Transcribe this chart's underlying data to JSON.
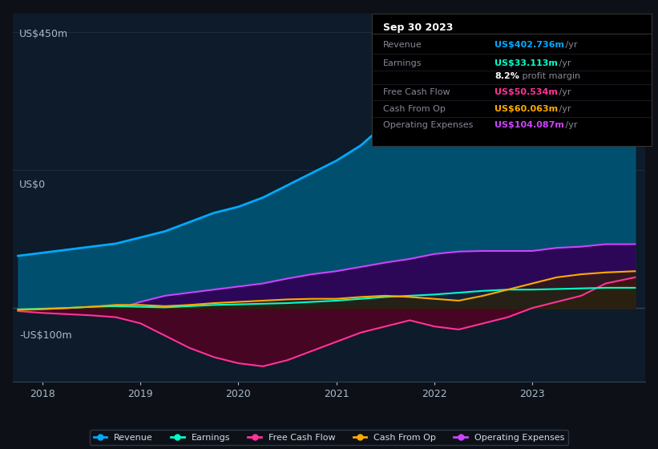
{
  "bg_color": "#0d1117",
  "plot_bg": "#0d1b2a",
  "grid_color": "#1e2d3d",
  "ylabel_450": "US$450m",
  "ylabel_0": "US$0",
  "ylabel_neg100": "-US$100m",
  "ylim": [
    -120,
    480
  ],
  "xlim": [
    2017.7,
    2024.15
  ],
  "xticks": [
    2018,
    2019,
    2020,
    2021,
    2022,
    2023
  ],
  "revenue": {
    "x": [
      2017.75,
      2018.0,
      2018.25,
      2018.5,
      2018.75,
      2019.0,
      2019.25,
      2019.5,
      2019.75,
      2020.0,
      2020.25,
      2020.5,
      2020.75,
      2021.0,
      2021.25,
      2021.5,
      2021.75,
      2022.0,
      2022.25,
      2022.5,
      2022.75,
      2023.0,
      2023.25,
      2023.5,
      2023.75,
      2024.05
    ],
    "y": [
      85,
      90,
      95,
      100,
      105,
      115,
      125,
      140,
      155,
      165,
      180,
      200,
      220,
      240,
      265,
      300,
      330,
      360,
      390,
      415,
      435,
      440,
      438,
      428,
      418,
      403
    ],
    "color": "#00aaff",
    "fill_color": "#005577",
    "label": "Revenue"
  },
  "operating_expenses": {
    "x": [
      2018.9,
      2019.0,
      2019.25,
      2019.5,
      2019.75,
      2020.0,
      2020.25,
      2020.5,
      2020.75,
      2021.0,
      2021.25,
      2021.5,
      2021.75,
      2022.0,
      2022.25,
      2022.5,
      2022.75,
      2023.0,
      2023.25,
      2023.5,
      2023.75,
      2024.05
    ],
    "y": [
      5,
      10,
      20,
      25,
      30,
      35,
      40,
      48,
      55,
      60,
      67,
      74,
      80,
      88,
      92,
      93,
      93,
      93,
      98,
      100,
      104,
      104
    ],
    "color": "#cc44ff",
    "fill_color": "#330055",
    "label": "Operating Expenses"
  },
  "earnings": {
    "x": [
      2017.75,
      2018.0,
      2018.25,
      2018.5,
      2018.75,
      2019.0,
      2019.25,
      2019.5,
      2019.75,
      2020.0,
      2020.25,
      2020.5,
      2020.75,
      2021.0,
      2021.25,
      2021.5,
      2021.75,
      2022.0,
      2022.25,
      2022.5,
      2022.75,
      2023.0,
      2023.25,
      2023.5,
      2023.75,
      2024.05
    ],
    "y": [
      -2,
      -1,
      0,
      2,
      3,
      2,
      1,
      3,
      5,
      6,
      7,
      8,
      10,
      12,
      15,
      18,
      20,
      22,
      25,
      28,
      30,
      30,
      31,
      32,
      33,
      33
    ],
    "color": "#00ffcc",
    "fill_color": "#003322",
    "label": "Earnings"
  },
  "free_cash_flow": {
    "x": [
      2017.75,
      2018.0,
      2018.25,
      2018.5,
      2018.75,
      2019.0,
      2019.25,
      2019.5,
      2019.75,
      2020.0,
      2020.25,
      2020.5,
      2020.75,
      2021.0,
      2021.25,
      2021.5,
      2021.75,
      2022.0,
      2022.25,
      2022.5,
      2022.75,
      2023.0,
      2023.25,
      2023.5,
      2023.75,
      2024.05
    ],
    "y": [
      -5,
      -8,
      -10,
      -12,
      -15,
      -25,
      -45,
      -65,
      -80,
      -90,
      -95,
      -85,
      -70,
      -55,
      -40,
      -30,
      -20,
      -30,
      -35,
      -25,
      -15,
      0,
      10,
      20,
      40,
      50
    ],
    "color": "#ff3399",
    "fill_color": "#550022",
    "label": "Free Cash Flow"
  },
  "cash_from_op": {
    "x": [
      2017.75,
      2018.0,
      2018.25,
      2018.5,
      2018.75,
      2019.0,
      2019.25,
      2019.5,
      2019.75,
      2020.0,
      2020.25,
      2020.5,
      2020.75,
      2021.0,
      2021.25,
      2021.5,
      2021.75,
      2022.0,
      2022.25,
      2022.5,
      2022.75,
      2023.0,
      2023.25,
      2023.5,
      2023.75,
      2024.05
    ],
    "y": [
      -3,
      -2,
      0,
      2,
      5,
      5,
      3,
      5,
      8,
      10,
      12,
      14,
      15,
      15,
      18,
      20,
      18,
      15,
      12,
      20,
      30,
      40,
      50,
      55,
      58,
      60
    ],
    "color": "#ffaa00",
    "fill_color": "#332200",
    "label": "Cash From Op"
  },
  "info_box": {
    "date": "Sep 30 2023",
    "items": [
      {
        "label": "Revenue",
        "value": "US$402.736m",
        "value_color": "#00aaff",
        "suffix": " /yr"
      },
      {
        "label": "Earnings",
        "value": "US$33.113m",
        "value_color": "#00ffcc",
        "suffix": " /yr"
      },
      {
        "label": "",
        "value": "8.2%",
        "value_color": "#ffffff",
        "suffix": " profit margin",
        "bold": true
      },
      {
        "label": "Free Cash Flow",
        "value": "US$50.534m",
        "value_color": "#ff3399",
        "suffix": " /yr"
      },
      {
        "label": "Cash From Op",
        "value": "US$60.063m",
        "value_color": "#ffaa00",
        "suffix": " /yr"
      },
      {
        "label": "Operating Expenses",
        "value": "US$104.087m",
        "value_color": "#cc44ff",
        "suffix": " /yr"
      }
    ]
  },
  "legend": [
    {
      "label": "Revenue",
      "color": "#00aaff"
    },
    {
      "label": "Earnings",
      "color": "#00ffcc"
    },
    {
      "label": "Free Cash Flow",
      "color": "#ff3399"
    },
    {
      "label": "Cash From Op",
      "color": "#ffaa00"
    },
    {
      "label": "Operating Expenses",
      "color": "#cc44ff"
    }
  ]
}
